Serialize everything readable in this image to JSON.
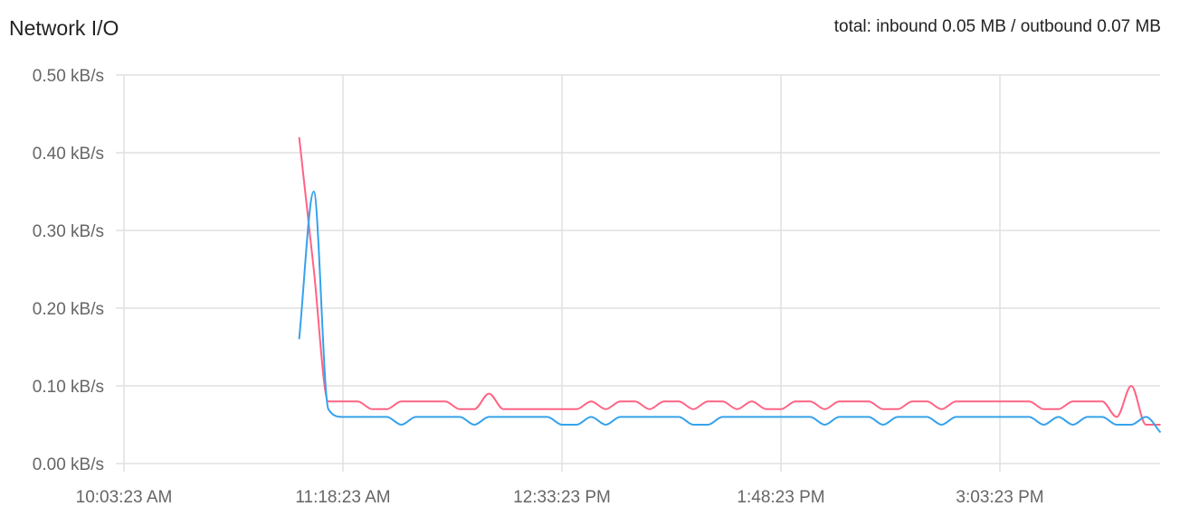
{
  "header": {
    "title": "Network I/O",
    "total": "total: inbound 0.05 MB / outbound 0.07 MB"
  },
  "chart_data": {
    "type": "line",
    "title": "Network I/O",
    "xlabel": "",
    "ylabel": "",
    "ylim": [
      0,
      0.5
    ],
    "y_ticks": [
      "0.00 kB/s",
      "0.10 kB/s",
      "0.20 kB/s",
      "0.30 kB/s",
      "0.40 kB/s",
      "0.50 kB/s"
    ],
    "x_range": [
      "10:03:23",
      "15:58:23"
    ],
    "x_ticks": [
      {
        "time": "10:03:23",
        "label": "10:03:23 AM"
      },
      {
        "time": "11:18:23",
        "label": "11:18:23 AM"
      },
      {
        "time": "12:33:23",
        "label": "12:33:23 PM"
      },
      {
        "time": "13:48:23",
        "label": "1:48:23 PM"
      },
      {
        "time": "15:03:23",
        "label": "3:03:23 PM"
      }
    ],
    "grid": true,
    "legend": "none",
    "x": [
      "11:03:23",
      "11:08:23",
      "11:13:23",
      "11:18:23",
      "11:23:23",
      "11:28:23",
      "11:33:23",
      "11:38:23",
      "11:43:23",
      "11:48:23",
      "11:53:23",
      "11:58:23",
      "12:03:23",
      "12:08:23",
      "12:13:23",
      "12:18:23",
      "12:23:23",
      "12:28:23",
      "12:33:23",
      "12:38:23",
      "12:43:23",
      "12:48:23",
      "12:53:23",
      "12:58:23",
      "13:03:23",
      "13:08:23",
      "13:13:23",
      "13:18:23",
      "13:23:23",
      "13:28:23",
      "13:33:23",
      "13:38:23",
      "13:43:23",
      "13:48:23",
      "13:53:23",
      "13:58:23",
      "14:03:23",
      "14:08:23",
      "14:13:23",
      "14:18:23",
      "14:23:23",
      "14:28:23",
      "14:33:23",
      "14:38:23",
      "14:43:23",
      "14:48:23",
      "14:53:23",
      "14:58:23",
      "15:03:23",
      "15:08:23",
      "15:13:23",
      "15:18:23",
      "15:23:23",
      "15:28:23",
      "15:33:23",
      "15:38:23",
      "15:43:23",
      "15:48:23",
      "15:53:23",
      "15:58:23"
    ],
    "series": [
      {
        "color": "#ff6384",
        "values": [
          0.42,
          0.25,
          0.08,
          0.08,
          0.08,
          0.07,
          0.07,
          0.08,
          0.08,
          0.08,
          0.08,
          0.07,
          0.07,
          0.09,
          0.07,
          0.07,
          0.07,
          0.07,
          0.07,
          0.07,
          0.08,
          0.07,
          0.08,
          0.08,
          0.07,
          0.08,
          0.08,
          0.07,
          0.08,
          0.08,
          0.07,
          0.08,
          0.07,
          0.07,
          0.08,
          0.08,
          0.07,
          0.08,
          0.08,
          0.08,
          0.07,
          0.07,
          0.08,
          0.08,
          0.07,
          0.08,
          0.08,
          0.08,
          0.08,
          0.08,
          0.08,
          0.07,
          0.07,
          0.08,
          0.08,
          0.08,
          0.06,
          0.1,
          0.05,
          0.05
        ]
      },
      {
        "color": "#36a2eb",
        "values": [
          0.16,
          0.35,
          0.07,
          0.06,
          0.06,
          0.06,
          0.06,
          0.05,
          0.06,
          0.06,
          0.06,
          0.06,
          0.05,
          0.06,
          0.06,
          0.06,
          0.06,
          0.06,
          0.05,
          0.05,
          0.06,
          0.05,
          0.06,
          0.06,
          0.06,
          0.06,
          0.06,
          0.05,
          0.05,
          0.06,
          0.06,
          0.06,
          0.06,
          0.06,
          0.06,
          0.06,
          0.05,
          0.06,
          0.06,
          0.06,
          0.05,
          0.06,
          0.06,
          0.06,
          0.05,
          0.06,
          0.06,
          0.06,
          0.06,
          0.06,
          0.06,
          0.05,
          0.06,
          0.05,
          0.06,
          0.06,
          0.05,
          0.05,
          0.06,
          0.04
        ]
      }
    ]
  }
}
